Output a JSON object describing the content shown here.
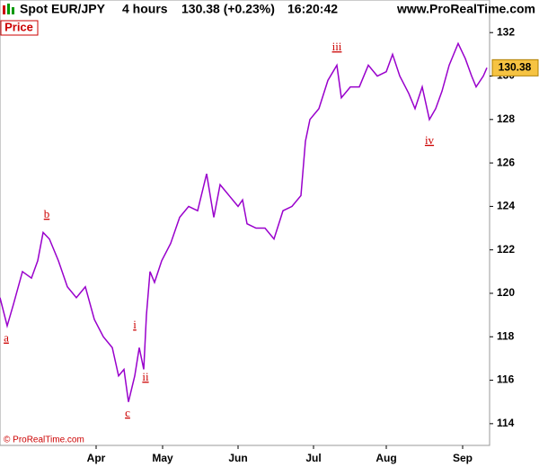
{
  "chart_data": {
    "type": "line",
    "title": "Spot EUR/JPY",
    "timeframe": "4 hours",
    "quote": "130.38 (+0.23%)",
    "time": "16:20:42",
    "source": "www.ProRealTime.com",
    "panel_label": "Price",
    "copyright": "© ProRealTime.com",
    "last_value": 130.38,
    "last_value_label": "130.38",
    "x": [
      0,
      8,
      15,
      25,
      35,
      42,
      48,
      55,
      65,
      75,
      85,
      95,
      105,
      115,
      125,
      132,
      138,
      143,
      150,
      155,
      160,
      163,
      167,
      172,
      180,
      190,
      200,
      210,
      220,
      230,
      238,
      245,
      255,
      265,
      270,
      275,
      285,
      295,
      305,
      315,
      325,
      335,
      340,
      345,
      355,
      365,
      375,
      380,
      390,
      400,
      410,
      420,
      430,
      437,
      445,
      455,
      462,
      470,
      478,
      485,
      492,
      500,
      510,
      518,
      525,
      530,
      538,
      542
    ],
    "series": [
      {
        "name": "EUR/JPY",
        "color": "#9900cc",
        "values": [
          119.8,
          118.5,
          119.5,
          121.0,
          120.7,
          121.5,
          122.8,
          122.5,
          121.5,
          120.3,
          119.8,
          120.3,
          118.8,
          118.0,
          117.5,
          116.2,
          116.5,
          115.0,
          116.2,
          117.5,
          116.5,
          119.0,
          121.0,
          120.5,
          121.5,
          122.3,
          123.5,
          124.0,
          123.8,
          125.5,
          123.5,
          125.0,
          124.5,
          124.0,
          124.3,
          123.2,
          123.0,
          123.0,
          122.5,
          123.8,
          124.0,
          124.5,
          127.0,
          128.0,
          128.5,
          129.8,
          130.5,
          129.0,
          129.5,
          129.5,
          130.5,
          130.0,
          130.2,
          131.0,
          130.0,
          129.2,
          128.5,
          129.5,
          128.0,
          128.5,
          129.3,
          130.5,
          131.5,
          130.8,
          130.0,
          129.5,
          130.0,
          130.38
        ]
      }
    ],
    "xlim": [
      0,
      545
    ],
    "xticks": [
      {
        "value": 107,
        "label": "Apr"
      },
      {
        "value": 181,
        "label": "May"
      },
      {
        "value": 265,
        "label": "Jun"
      },
      {
        "value": 349,
        "label": "Jul"
      },
      {
        "value": 430,
        "label": "Aug"
      },
      {
        "value": 515,
        "label": "Sep"
      }
    ],
    "ylim": [
      113,
      133.5
    ],
    "yticks": [
      114,
      116,
      118,
      120,
      122,
      124,
      126,
      128,
      130,
      132
    ],
    "annotations": [
      {
        "text": "a",
        "x": 7,
        "y": 117.9
      },
      {
        "text": "b",
        "x": 52,
        "y": 123.6
      },
      {
        "text": "c",
        "x": 142,
        "y": 114.45
      },
      {
        "text": "i",
        "x": 150,
        "y": 118.5
      },
      {
        "text": "ii",
        "x": 162,
        "y": 116.1
      },
      {
        "text": "iii",
        "x": 375,
        "y": 131.3
      },
      {
        "text": "iv",
        "x": 478,
        "y": 127.0
      }
    ]
  }
}
